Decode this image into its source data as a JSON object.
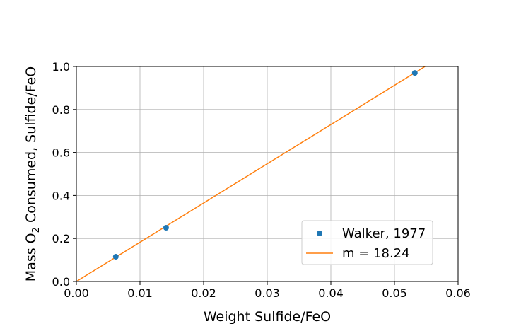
{
  "chart_data": {
    "type": "scatter",
    "xlabel": "Weight Sulfide/FeO",
    "ylabel": {
      "prefix": "Mass O",
      "subscript": "2",
      "suffix": " Consumed, Sulfide/FeO"
    },
    "xlim": [
      0.0,
      0.06
    ],
    "ylim": [
      0.0,
      1.0
    ],
    "x_ticks": [
      {
        "value": 0.0,
        "label": "0.00"
      },
      {
        "value": 0.01,
        "label": "0.01"
      },
      {
        "value": 0.02,
        "label": "0.02"
      },
      {
        "value": 0.03,
        "label": "0.03"
      },
      {
        "value": 0.04,
        "label": "0.04"
      },
      {
        "value": 0.05,
        "label": "0.05"
      },
      {
        "value": 0.06,
        "label": "0.06"
      }
    ],
    "y_ticks": [
      {
        "value": 0.0,
        "label": "0.0"
      },
      {
        "value": 0.2,
        "label": "0.2"
      },
      {
        "value": 0.4,
        "label": "0.4"
      },
      {
        "value": 0.6,
        "label": "0.6"
      },
      {
        "value": 0.8,
        "label": "0.8"
      },
      {
        "value": 1.0,
        "label": "1.0"
      }
    ],
    "grid": true,
    "legend_position": "lower-right",
    "series": [
      {
        "name": "Walker, 1977",
        "kind": "scatter",
        "color": "#1f77b4",
        "points": [
          {
            "x": 0.0062,
            "y": 0.115
          },
          {
            "x": 0.0141,
            "y": 0.25
          },
          {
            "x": 0.0532,
            "y": 0.97
          }
        ]
      },
      {
        "name": "m = 18.24",
        "kind": "line",
        "color": "#ff7f0e",
        "slope": 18.24,
        "points": [
          {
            "x": 0.0,
            "y": 0.0
          },
          {
            "x": 0.0548,
            "y": 1.0
          }
        ]
      }
    ]
  }
}
